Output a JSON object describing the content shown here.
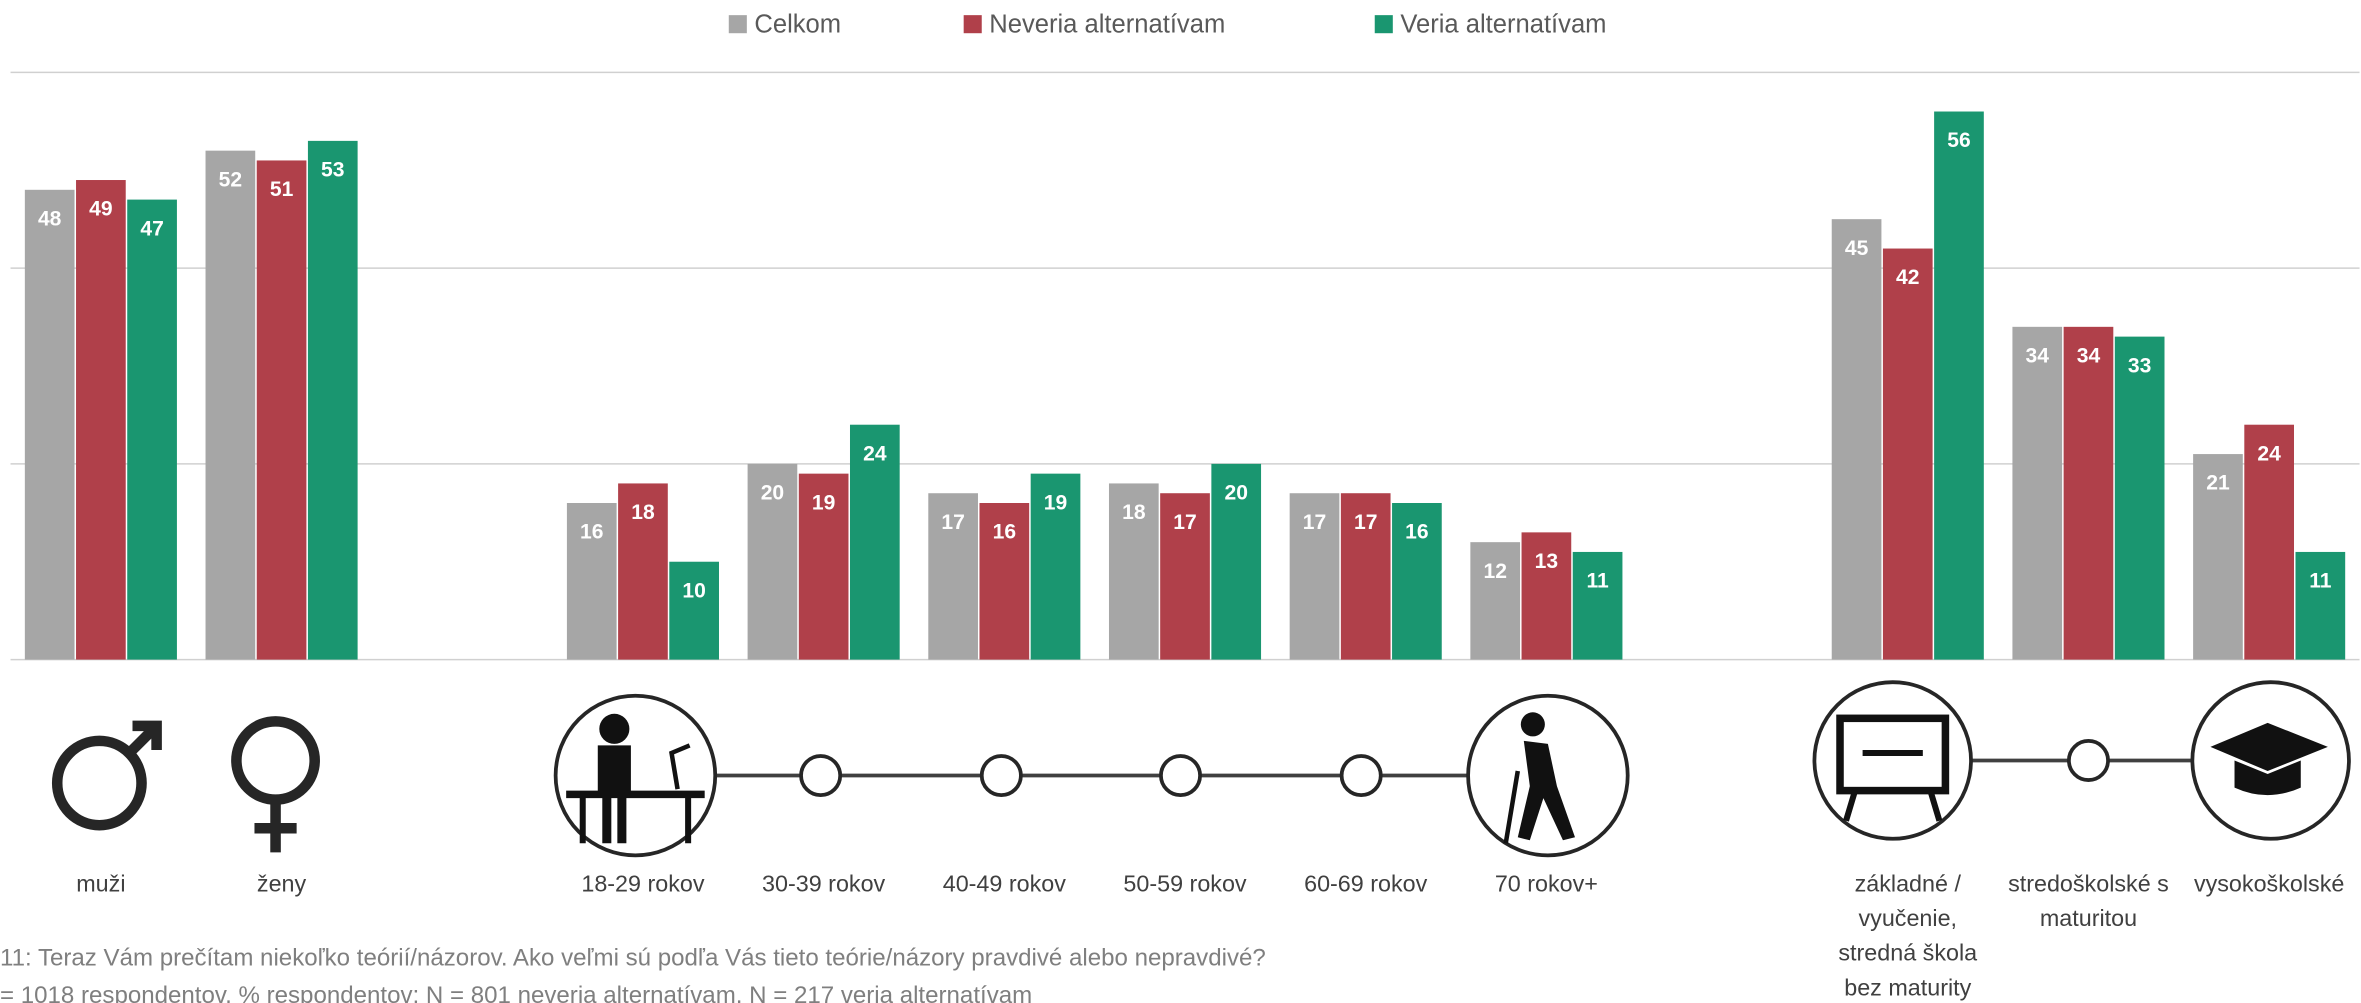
{
  "chart_data": {
    "type": "bar",
    "categories": [
      "muži",
      "ženy",
      null,
      "18-29 rokov",
      "30-39 rokov",
      "40-49 rokov",
      "50-59 rokov",
      "60-69 rokov",
      "70 rokov+",
      null,
      "základné /\nvyučenie,\nstredná škola\nbez maturity",
      "stredoškolské s\nmaturitou",
      "vysokoškolské"
    ],
    "series": [
      {
        "name": "Celkom",
        "color": "#a6a6a6",
        "values": [
          48,
          52,
          null,
          16,
          20,
          17,
          18,
          17,
          12,
          null,
          45,
          34,
          21
        ]
      },
      {
        "name": "Neveria alternatívam",
        "color": "#b0404a",
        "values": [
          49,
          51,
          null,
          18,
          19,
          16,
          17,
          17,
          13,
          null,
          42,
          34,
          24
        ]
      },
      {
        "name": "Veria alternatívam",
        "color": "#1a9670",
        "values": [
          47,
          53,
          null,
          10,
          24,
          19,
          20,
          16,
          11,
          null,
          56,
          33,
          11
        ]
      }
    ],
    "ylim": [
      0,
      60
    ],
    "yticks": [
      0,
      20,
      40,
      60
    ],
    "grid": true,
    "legend": "top",
    "notes": [
      "11: Teraz Vám prečítam niekoľko teórií/názorov. Ako veľmi sú podľa Vás tieto teórie/názory pravdivé alebo nepravdivé?",
      "= 1018 respondentov, % respondentov; N = 801 neveria alternatívam, N = 217 veria alternatívam"
    ]
  }
}
